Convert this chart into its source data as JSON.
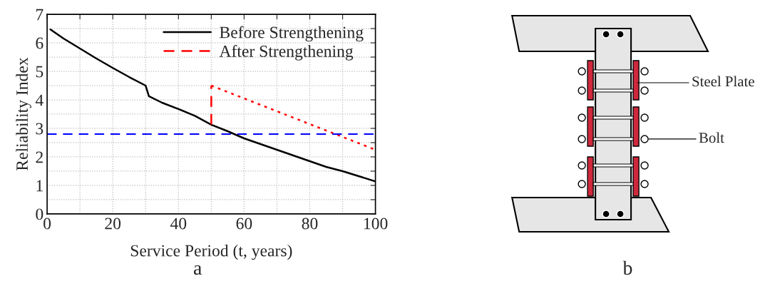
{
  "chart_data": {
    "type": "line",
    "xlabel": "Service Period (t, years)",
    "ylabel": "Reliability Index",
    "xlim": [
      0,
      100
    ],
    "ylim": [
      0,
      7
    ],
    "xticks": [
      0,
      {
        "value": 10,
        "label": null
      },
      20,
      {
        "value": 30,
        "label": null
      },
      40,
      {
        "value": 50,
        "label": null
      },
      60,
      {
        "value": 70,
        "label": null
      },
      80,
      {
        "value": 90,
        "label": null
      },
      100
    ],
    "yticks": [
      0,
      {
        "value": 0.5,
        "label": null
      },
      1,
      {
        "value": 1.5,
        "label": null
      },
      2,
      {
        "value": 2.5,
        "label": null
      },
      3,
      {
        "value": 3.5,
        "label": null
      },
      4,
      {
        "value": 4.5,
        "label": null
      },
      5,
      {
        "value": 5.5,
        "label": null
      },
      6,
      {
        "value": 6.5,
        "label": null
      },
      7
    ],
    "grid": true,
    "legend": "top right",
    "series": [
      {
        "name": "Before Strengthening",
        "color": "#000000",
        "line_style": "solid",
        "x": [
          1,
          5,
          10,
          15,
          20,
          25,
          30,
          31,
          35,
          40,
          45,
          50,
          55,
          57,
          60,
          70,
          80,
          85,
          90,
          100
        ],
        "values": [
          6.47,
          6.15,
          5.8,
          5.45,
          5.12,
          4.8,
          4.5,
          4.13,
          3.9,
          3.68,
          3.44,
          3.13,
          2.9,
          2.8,
          2.65,
          2.25,
          1.85,
          1.65,
          1.5,
          1.14
        ]
      },
      {
        "name": "After Strengthening",
        "color": "#ff0000",
        "line_style": "dashed",
        "x": [
          50,
          50
        ],
        "values": [
          3.13,
          4.5
        ]
      },
      {
        "color": "#ff0000",
        "line_style": "dotted",
        "x": [
          50,
          100
        ],
        "values": [
          4.5,
          2.25
        ]
      }
    ],
    "ref_lines": [
      {
        "axis": "y",
        "value": 2.8,
        "color": "#0000ff",
        "line_style": "dashed"
      }
    ],
    "annotations": [
      "a",
      "b",
      "Steel Plate",
      "Bolt"
    ]
  }
}
